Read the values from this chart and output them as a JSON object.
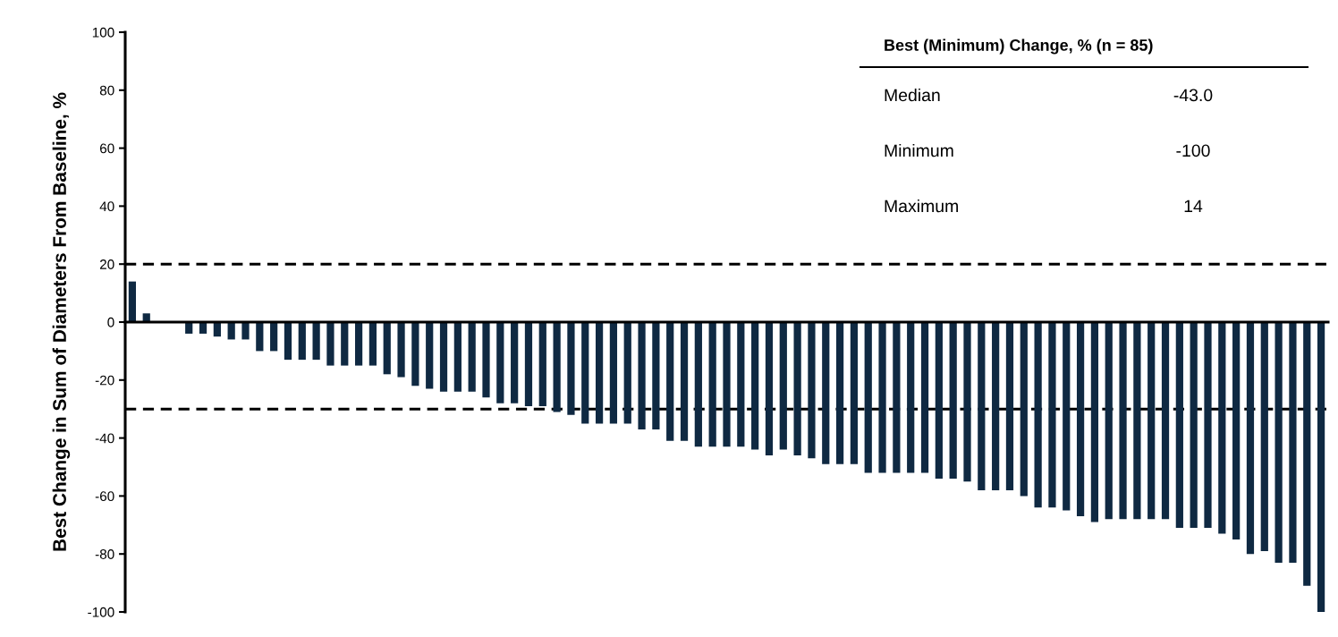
{
  "chart_data": {
    "type": "bar",
    "ylabel": "Best Change in Sum of Diameters From Baseline, %",
    "categories": [
      null,
      null,
      null,
      null,
      null,
      null,
      null,
      null,
      null,
      null,
      null,
      null,
      null,
      null,
      null,
      null,
      null,
      null,
      null,
      null,
      null,
      null,
      null,
      null,
      null,
      null,
      null,
      null,
      null,
      null,
      null,
      null,
      null,
      null,
      null,
      null,
      null,
      null,
      null,
      null,
      null,
      null,
      null,
      null,
      null,
      null,
      null,
      null,
      null,
      null,
      null,
      null,
      null,
      null,
      null,
      null,
      null,
      null,
      null,
      null,
      null,
      null,
      null,
      null,
      null,
      null,
      null,
      null,
      null,
      null,
      null,
      null,
      null,
      null,
      null,
      null,
      null,
      null,
      null,
      null,
      null,
      null,
      null,
      null,
      null
    ],
    "values": [
      14,
      3,
      null,
      null,
      -4,
      -4,
      -5,
      -6,
      -6,
      -10,
      -10,
      -13,
      -13,
      -13,
      -15,
      -15,
      -15,
      -15,
      -18,
      -19,
      -22,
      -23,
      -24,
      -24,
      -24,
      -26,
      -28,
      -28,
      -29,
      -29,
      -31,
      -32,
      -35,
      -35,
      -35,
      -35,
      -37,
      -37,
      -41,
      -41,
      -43,
      -43,
      -43,
      -43,
      -44,
      -46,
      -44,
      -46,
      -47,
      -49,
      -49,
      -49,
      -52,
      -52,
      -52,
      -52,
      -52,
      -54,
      -54,
      -55,
      -58,
      -58,
      -58,
      -60,
      -64,
      -64,
      -65,
      -67,
      -69,
      -68,
      -68,
      -68,
      -68,
      -68,
      -71,
      -71,
      -71,
      -73,
      -75,
      -80,
      -79,
      -83,
      -83,
      -91,
      -100
    ],
    "color": "#0f2942",
    "ylim": [
      -100,
      100
    ],
    "yticks": [
      -100,
      -80,
      -60,
      -40,
      -20,
      0,
      20,
      40,
      60,
      80,
      100
    ],
    "grid": false,
    "legend": false,
    "tick_labels": "y",
    "ref_lines": [
      {
        "axis": "y",
        "value": 20,
        "color": "#000000",
        "line_style": "dashed"
      },
      {
        "axis": "y",
        "value": -30,
        "color": "#000000",
        "line_style": "dashed"
      }
    ],
    "annotations": [
      "Best (Minimum) Change, % (n = 85)",
      "Median",
      "-43.0",
      "Minimum",
      "-100",
      "Maximum",
      "14"
    ]
  }
}
